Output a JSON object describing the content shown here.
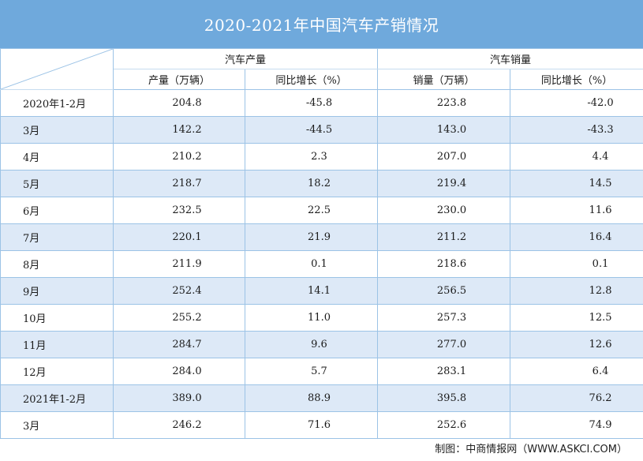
{
  "title": "2020-2021年中国汽车产销情况",
  "headers": {
    "production_group": "汽车产量",
    "sales_group": "汽车销量",
    "production": "产量（万辆）",
    "production_yoy": "同比增长（%）",
    "sales": "销量（万辆）",
    "sales_yoy": "同比增长（%）"
  },
  "rows": [
    {
      "period": "2020年1-2月",
      "production": "204.8",
      "production_yoy": "-45.8",
      "sales": "223.8",
      "sales_yoy": "-42.0"
    },
    {
      "period": "3月",
      "production": "142.2",
      "production_yoy": "-44.5",
      "sales": "143.0",
      "sales_yoy": "-43.3"
    },
    {
      "period": "4月",
      "production": "210.2",
      "production_yoy": "2.3",
      "sales": "207.0",
      "sales_yoy": "4.4"
    },
    {
      "period": "5月",
      "production": "218.7",
      "production_yoy": "18.2",
      "sales": "219.4",
      "sales_yoy": "14.5"
    },
    {
      "period": "6月",
      "production": "232.5",
      "production_yoy": "22.5",
      "sales": "230.0",
      "sales_yoy": "11.6"
    },
    {
      "period": "7月",
      "production": "220.1",
      "production_yoy": "21.9",
      "sales": "211.2",
      "sales_yoy": "16.4"
    },
    {
      "period": "8月",
      "production": "211.9",
      "production_yoy": "0.1",
      "sales": "218.6",
      "sales_yoy": "0.1"
    },
    {
      "period": "9月",
      "production": "252.4",
      "production_yoy": "14.1",
      "sales": "256.5",
      "sales_yoy": "12.8"
    },
    {
      "period": "10月",
      "production": "255.2",
      "production_yoy": "11.0",
      "sales": "257.3",
      "sales_yoy": "12.5"
    },
    {
      "period": "11月",
      "production": "284.7",
      "production_yoy": "9.6",
      "sales": "277.0",
      "sales_yoy": "12.6"
    },
    {
      "period": "12月",
      "production": "284.0",
      "production_yoy": "5.7",
      "sales": "283.1",
      "sales_yoy": "6.4"
    },
    {
      "period": "2021年1-2月",
      "production": "389.0",
      "production_yoy": "88.9",
      "sales": "395.8",
      "sales_yoy": "76.2"
    },
    {
      "period": "3月",
      "production": "246.2",
      "production_yoy": "71.6",
      "sales": "252.6",
      "sales_yoy": "74.9"
    }
  ],
  "footer": "制图：中商情报网（WWW.ASKCI.COM）",
  "colors": {
    "header_bg": "#6fa9dc",
    "stripe": "#dde9f7",
    "border": "#9cc3e6"
  }
}
